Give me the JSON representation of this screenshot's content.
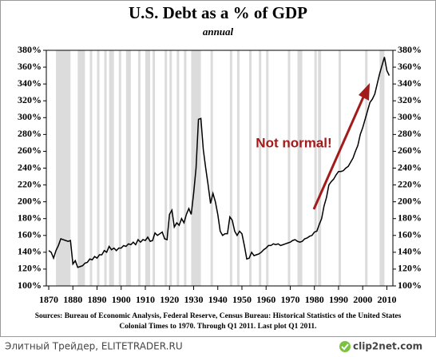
{
  "chart_data": {
    "type": "line",
    "title": "U.S. Debt as a % of GDP",
    "subtitle": "annual",
    "annotation": "Not normal!",
    "notes": [
      "Sources: Bureau of Economic Analysis, Federal Reserve, Census Bureau: Historical Statistics of the United States",
      "Colonial Times to 1970.   Through Q1 2011. Last plot Q1 2011."
    ],
    "color": "#000000",
    "annotation_color": "#a31a1a",
    "shade_color": "#dcdcdc",
    "x": [
      1870,
      1871,
      1872,
      1873,
      1874,
      1875,
      1876,
      1877,
      1878,
      1879,
      1880,
      1881,
      1882,
      1883,
      1884,
      1885,
      1886,
      1887,
      1888,
      1889,
      1890,
      1891,
      1892,
      1893,
      1894,
      1895,
      1896,
      1897,
      1898,
      1899,
      1900,
      1901,
      1902,
      1903,
      1904,
      1905,
      1906,
      1907,
      1908,
      1909,
      1910,
      1911,
      1912,
      1913,
      1914,
      1915,
      1916,
      1917,
      1918,
      1919,
      1920,
      1921,
      1922,
      1923,
      1924,
      1925,
      1926,
      1927,
      1928,
      1929,
      1930,
      1931,
      1932,
      1933,
      1934,
      1935,
      1936,
      1937,
      1938,
      1939,
      1940,
      1941,
      1942,
      1943,
      1944,
      1945,
      1946,
      1947,
      1948,
      1949,
      1950,
      1951,
      1952,
      1953,
      1954,
      1955,
      1956,
      1957,
      1958,
      1959,
      1960,
      1961,
      1962,
      1963,
      1964,
      1965,
      1966,
      1967,
      1968,
      1969,
      1970,
      1971,
      1972,
      1973,
      1974,
      1975,
      1976,
      1977,
      1978,
      1979,
      1980,
      1981,
      1982,
      1983,
      1984,
      1985,
      1986,
      1987,
      1988,
      1989,
      1990,
      1991,
      1992,
      1993,
      1994,
      1995,
      1996,
      1997,
      1998,
      1999,
      2000,
      2001,
      2002,
      2003,
      2004,
      2005,
      2006,
      2007,
      2008,
      2009,
      2010,
      2011
    ],
    "values": [
      142,
      140,
      133,
      142,
      148,
      156,
      155,
      154,
      153,
      154,
      126,
      130,
      122,
      123,
      124,
      127,
      128,
      132,
      131,
      135,
      133,
      137,
      137,
      142,
      140,
      147,
      143,
      145,
      142,
      145,
      145,
      148,
      147,
      150,
      149,
      152,
      149,
      155,
      152,
      155,
      154,
      158,
      153,
      154,
      163,
      160,
      162,
      164,
      156,
      155,
      185,
      190,
      170,
      175,
      172,
      180,
      175,
      185,
      192,
      185,
      210,
      240,
      298,
      299,
      262,
      240,
      220,
      198,
      210,
      200,
      185,
      165,
      160,
      162,
      162,
      182,
      178,
      165,
      160,
      165,
      162,
      148,
      132,
      133,
      140,
      136,
      137,
      138,
      140,
      143,
      145,
      148,
      148,
      150,
      149,
      150,
      148,
      149,
      150,
      151,
      152,
      154,
      155,
      153,
      152,
      153,
      156,
      157,
      159,
      160,
      164,
      165,
      173,
      180,
      195,
      205,
      220,
      224,
      227,
      232,
      236,
      236,
      237,
      240,
      242,
      247,
      252,
      260,
      267,
      280,
      288,
      298,
      308,
      318,
      322,
      328,
      340,
      352,
      362,
      372,
      356,
      350
    ],
    "shaded_periods": [
      [
        1873,
        1879
      ],
      [
        1882,
        1885
      ],
      [
        1887,
        1888
      ],
      [
        1890,
        1891
      ],
      [
        1893,
        1894
      ],
      [
        1895,
        1897
      ],
      [
        1899,
        1900
      ],
      [
        1902,
        1904
      ],
      [
        1907,
        1908
      ],
      [
        1910,
        1912
      ],
      [
        1913,
        1914
      ],
      [
        1918,
        1919
      ],
      [
        1920,
        1921
      ],
      [
        1923,
        1924
      ],
      [
        1926,
        1927
      ],
      [
        1929,
        1933
      ],
      [
        1937,
        1938
      ],
      [
        1945,
        1946
      ],
      [
        1948,
        1949
      ],
      [
        1953,
        1954
      ],
      [
        1957,
        1958
      ],
      [
        1960,
        1961
      ],
      [
        1969,
        1970
      ],
      [
        1973,
        1975
      ],
      [
        1980,
        1981
      ],
      [
        1981.5,
        1982.8
      ],
      [
        1990,
        1991
      ],
      [
        2001,
        2002
      ],
      [
        2007,
        2009
      ]
    ],
    "xlim": [
      1869,
      2012.5
    ],
    "xticks": [
      1870,
      1880,
      1890,
      1900,
      1910,
      1920,
      1930,
      1940,
      1950,
      1960,
      1970,
      1980,
      1990,
      2000,
      2010
    ],
    "ylim": [
      100,
      380
    ],
    "yticks": [
      {
        "value": 100,
        "label": "100%"
      },
      {
        "value": 120,
        "label": "120%"
      },
      {
        "value": 140,
        "label": "140%"
      },
      {
        "value": 160,
        "label": "160%"
      },
      {
        "value": 180,
        "label": "180%"
      },
      {
        "value": 200,
        "label": "200%"
      },
      {
        "value": 220,
        "label": "220%"
      },
      {
        "value": 240,
        "label": "240%"
      },
      {
        "value": 260,
        "label": "260%"
      },
      {
        "value": 280,
        "label": "280%"
      },
      {
        "value": 300,
        "label": "300%"
      },
      {
        "value": 320,
        "label": "320%"
      },
      {
        "value": 340,
        "label": "340%"
      },
      {
        "value": 360,
        "label": "360%"
      },
      {
        "value": 380,
        "label": "380%"
      }
    ],
    "y2lim": [
      100,
      380
    ],
    "y2ticks": [
      {
        "value": 100,
        "label": "100%"
      },
      {
        "value": 120,
        "label": "120%"
      },
      {
        "value": 140,
        "label": "140%"
      },
      {
        "value": 160,
        "label": "160%"
      },
      {
        "value": 180,
        "label": "180%"
      },
      {
        "value": 200,
        "label": "200%"
      },
      {
        "value": 220,
        "label": "220%"
      },
      {
        "value": 240,
        "label": "240%"
      },
      {
        "value": 260,
        "label": "260%"
      },
      {
        "value": 280,
        "label": "280%"
      },
      {
        "value": 300,
        "label": "300%"
      },
      {
        "value": 320,
        "label": "320%"
      },
      {
        "value": 340,
        "label": "340%"
      },
      {
        "value": 360,
        "label": "360%"
      },
      {
        "value": 380,
        "label": "380%"
      }
    ]
  },
  "footer": {
    "left": "Элитный Трейдер, ELITETRADER.RU",
    "right": "clip2net.com"
  }
}
